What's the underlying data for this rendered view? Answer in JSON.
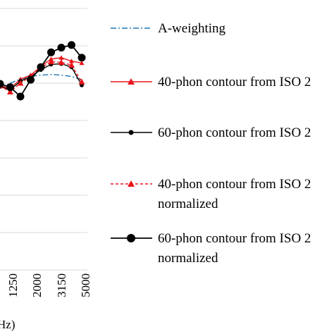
{
  "chart_data": {
    "type": "line",
    "xlabel_visible": "Hz)",
    "x": [
      "800",
      "1000",
      "1250",
      "1600",
      "2000",
      "2500",
      "3150",
      "4000",
      "5000"
    ],
    "x_tick_labels_shown": [
      "1250",
      "2000",
      "3150",
      "5000"
    ],
    "grid": true,
    "legend_position": "right",
    "series": [
      {
        "name": "A-weighting",
        "color": "#1f77b4",
        "style": "dash-dot",
        "marker": "none",
        "values": [
          -0.8,
          0.0,
          0.6,
          1.0,
          1.2,
          1.3,
          1.2,
          1.0,
          0.5
        ]
      },
      {
        "name": "40-phon contour from ISO 2",
        "color": "#e8141a",
        "style": "solid",
        "marker": "triangle-small",
        "values": [
          -0.4,
          -0.8,
          0.6,
          1.2,
          2.5,
          3.6,
          3.8,
          3.3,
          3.0
        ]
      },
      {
        "name": "60-phon contour from ISO 2",
        "color": "#000000",
        "style": "solid",
        "marker": "circle-small",
        "values": [
          -0.5,
          -1.0,
          0.3,
          1.0,
          2.0,
          2.8,
          2.9,
          2.4,
          -0.3
        ]
      },
      {
        "name": "40-phon contour from ISO 2 normalized",
        "color": "#e8141a",
        "style": "dashed",
        "marker": "triangle",
        "values": [
          -0.4,
          -1.3,
          0.0,
          1.0,
          2.3,
          3.2,
          3.1,
          2.7,
          0.2
        ]
      },
      {
        "name": "60-phon contour from ISO 2 normalized",
        "color": "#000000",
        "style": "solid",
        "marker": "circle-large",
        "values": [
          -0.1,
          -0.6,
          -2.0,
          0.5,
          2.4,
          4.6,
          5.3,
          5.7,
          3.8
        ]
      }
    ],
    "legend": [
      {
        "lines": [
          "A-weighting"
        ]
      },
      {
        "lines": [
          "40-phon contour from ISO 2"
        ]
      },
      {
        "lines": [
          "60-phon contour from ISO 2"
        ]
      },
      {
        "lines": [
          "40-phon contour from ISO 2",
          "normalized"
        ]
      },
      {
        "lines": [
          "60-phon contour from ISO 2",
          "normalized"
        ]
      }
    ]
  }
}
